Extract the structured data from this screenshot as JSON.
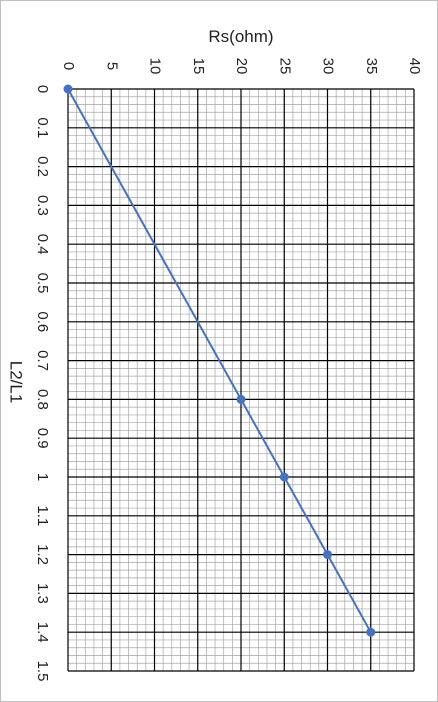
{
  "chart_data": {
    "type": "line",
    "orientation": "rotated-90-clockwise",
    "xlabel": "L2/L1",
    "ylabel": "Rs(ohm)",
    "xlim": [
      0,
      1.5
    ],
    "ylim": [
      0,
      40
    ],
    "x_ticks": [
      "0",
      "0.1",
      "0.2",
      "0.3",
      "0.4",
      "0.5",
      "0.6",
      "0.7",
      "0.8",
      "0.9",
      "1",
      "1.1",
      "1.2",
      "1.3",
      "1.4",
      "1.5"
    ],
    "y_ticks": [
      "0",
      "5",
      "10",
      "15",
      "20",
      "25",
      "30",
      "35",
      "40"
    ],
    "grid": true,
    "legend": "none",
    "series": [
      {
        "color": "#4472c4",
        "points": [
          {
            "x": 0,
            "y": 0
          },
          {
            "x": 0.8,
            "y": 20
          },
          {
            "x": 1.0,
            "y": 25
          },
          {
            "x": 1.2,
            "y": 30
          },
          {
            "x": 1.4,
            "y": 35
          }
        ]
      }
    ]
  },
  "colors": {
    "series": "#4472c4",
    "major_grid": "#000000",
    "minor_grid": "#a6a6a6",
    "sheet_grid": "#e1e1e1"
  }
}
